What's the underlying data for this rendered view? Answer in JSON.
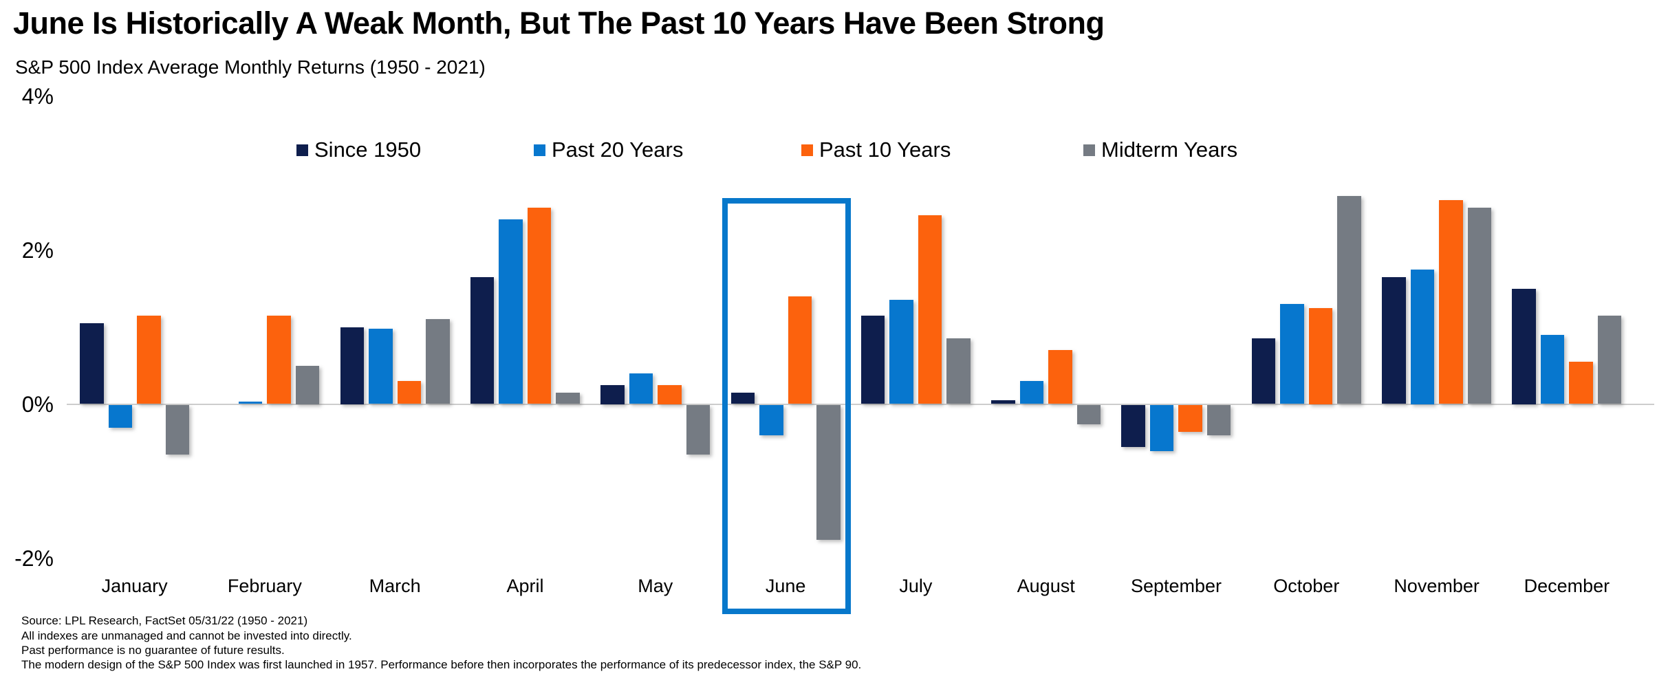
{
  "header": {
    "title": "June Is Historically A Weak Month, But The Past 10 Years Have Been Strong",
    "subtitle": "S&P 500 Index Average Monthly Returns (1950 - 2021)"
  },
  "chart_data": {
    "type": "bar",
    "title": "June Is Historically A Weak Month, But The Past 10 Years Have Been Strong",
    "subtitle": "S&P 500 Index Average Monthly Returns (1950 - 2021)",
    "categories": [
      "January",
      "February",
      "March",
      "April",
      "May",
      "June",
      "July",
      "August",
      "September",
      "October",
      "November",
      "December"
    ],
    "series": [
      {
        "name": "Since 1950",
        "color": "#0E1E4D",
        "values": [
          1.05,
          0.0,
          1.0,
          1.65,
          0.25,
          0.15,
          1.15,
          0.05,
          -0.55,
          0.85,
          1.65,
          1.5
        ]
      },
      {
        "name": "Past 20 Years",
        "color": "#0777CE",
        "values": [
          -0.3,
          0.03,
          0.98,
          2.4,
          0.4,
          -0.4,
          1.35,
          0.3,
          -0.6,
          1.3,
          1.75,
          0.9
        ]
      },
      {
        "name": "Past 10 Years",
        "color": "#FC620D",
        "values": [
          1.15,
          1.15,
          0.3,
          2.55,
          0.25,
          1.4,
          2.45,
          0.7,
          -0.35,
          1.25,
          2.65,
          0.55
        ]
      },
      {
        "name": "Midterm Years",
        "color": "#757B83",
        "values": [
          -0.65,
          0.5,
          1.1,
          0.15,
          -0.65,
          -1.75,
          0.85,
          -0.25,
          -0.4,
          2.7,
          2.55,
          1.15
        ]
      }
    ],
    "ylabel": "",
    "xlabel": "",
    "ylim": [
      -2,
      4
    ],
    "y_ticks": [
      {
        "label": "4%",
        "value": 4
      },
      {
        "label": "2%",
        "value": 2
      },
      {
        "label": "0%",
        "value": 0
      },
      {
        "label": "-2%",
        "value": -2
      }
    ],
    "grid": false,
    "legend_position": "top",
    "highlight": {
      "category": "June",
      "border_color": "#0778CB"
    }
  },
  "colors": {
    "axis_line": "#CDCDCD"
  },
  "footer": {
    "lines": [
      "Source: LPL Research, FactSet 05/31/22  (1950 - 2021)",
      "All indexes are unmanaged and cannot be invested into directly.",
      "Past performance is no guarantee of future results.",
      "The modern design of the S&P 500 Index was first launched in 1957. Performance before then incorporates the performance of its  predecessor index, the S&P 90."
    ]
  }
}
